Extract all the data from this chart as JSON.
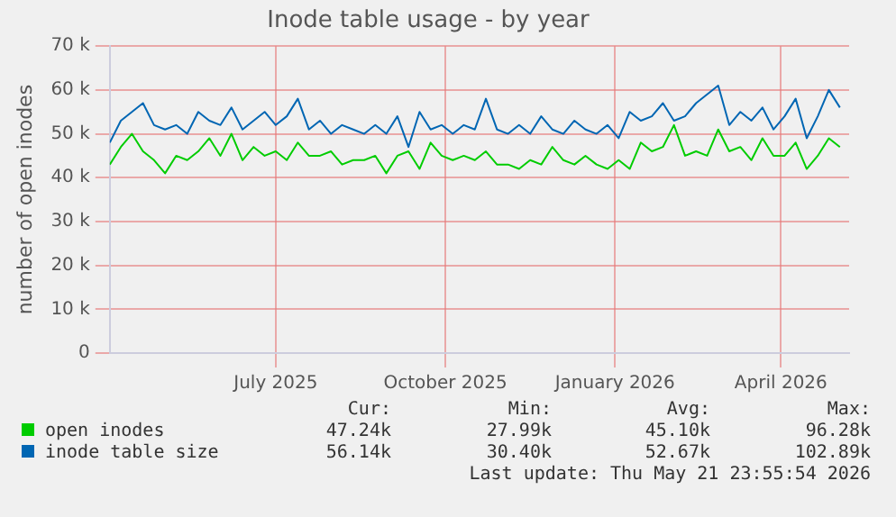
{
  "chart_data": {
    "type": "line",
    "title": "Inode table usage - by year",
    "ylabel": "number of open inodes",
    "x": [
      "2025-04-02",
      "2025-04-08",
      "2025-04-14",
      "2025-04-20",
      "2025-04-26",
      "2025-05-02",
      "2025-05-08",
      "2025-05-14",
      "2025-05-20",
      "2025-05-26",
      "2025-06-01",
      "2025-06-07",
      "2025-06-13",
      "2025-06-19",
      "2025-06-25",
      "2025-07-01",
      "2025-07-07",
      "2025-07-13",
      "2025-07-19",
      "2025-07-25",
      "2025-07-31",
      "2025-08-06",
      "2025-08-12",
      "2025-08-18",
      "2025-08-24",
      "2025-08-30",
      "2025-09-05",
      "2025-09-11",
      "2025-09-17",
      "2025-09-23",
      "2025-09-29",
      "2025-10-05",
      "2025-10-11",
      "2025-10-17",
      "2025-10-23",
      "2025-10-29",
      "2025-11-04",
      "2025-11-10",
      "2025-11-16",
      "2025-11-22",
      "2025-11-28",
      "2025-12-04",
      "2025-12-10",
      "2025-12-16",
      "2025-12-22",
      "2025-12-28",
      "2026-01-03",
      "2026-01-09",
      "2026-01-15",
      "2026-01-21",
      "2026-01-27",
      "2026-02-02",
      "2026-02-08",
      "2026-02-14",
      "2026-02-20",
      "2026-02-26",
      "2026-03-04",
      "2026-03-10",
      "2026-03-16",
      "2026-03-22",
      "2026-03-28",
      "2026-04-03",
      "2026-04-09",
      "2026-04-15",
      "2026-04-21",
      "2026-04-27",
      "2026-05-03"
    ],
    "series": [
      {
        "name": "open inodes",
        "color": "#00cc00",
        "values": [
          43000,
          47000,
          50000,
          46000,
          44000,
          41000,
          45000,
          44000,
          46000,
          49000,
          45000,
          50000,
          44000,
          47000,
          45000,
          46000,
          44000,
          48000,
          45000,
          45000,
          46000,
          43000,
          44000,
          44000,
          45000,
          41000,
          45000,
          46000,
          42000,
          48000,
          45000,
          44000,
          45000,
          44000,
          46000,
          43000,
          43000,
          42000,
          44000,
          43000,
          47000,
          44000,
          43000,
          45000,
          43000,
          42000,
          44000,
          42000,
          48000,
          46000,
          47000,
          52000,
          45000,
          46000,
          45000,
          51000,
          46000,
          47000,
          44000,
          49000,
          45000,
          45000,
          48000,
          42000,
          45000,
          49000,
          47000
        ]
      },
      {
        "name": "inode table size",
        "color": "#0066b3",
        "values": [
          48000,
          53000,
          55000,
          57000,
          52000,
          51000,
          52000,
          50000,
          55000,
          53000,
          52000,
          56000,
          51000,
          53000,
          55000,
          52000,
          54000,
          58000,
          51000,
          53000,
          50000,
          52000,
          51000,
          50000,
          52000,
          50000,
          54000,
          47000,
          55000,
          51000,
          52000,
          50000,
          52000,
          51000,
          58000,
          51000,
          50000,
          52000,
          50000,
          54000,
          51000,
          50000,
          53000,
          51000,
          50000,
          52000,
          49000,
          55000,
          53000,
          54000,
          57000,
          53000,
          54000,
          57000,
          59000,
          61000,
          52000,
          55000,
          53000,
          56000,
          51000,
          54000,
          58000,
          49000,
          54000,
          60000,
          56000
        ]
      }
    ],
    "xlim": [
      "2025-04-02",
      "2026-05-08"
    ],
    "xticks": [
      {
        "value": "2025-07-01",
        "label": "July 2025"
      },
      {
        "value": "2025-10-01",
        "label": "October 2025"
      },
      {
        "value": "2026-01-01",
        "label": "January 2026"
      },
      {
        "value": "2026-04-01",
        "label": "April 2026"
      }
    ],
    "ylim": [
      0,
      70000
    ],
    "yticks": [
      0,
      {
        "value": 10000,
        "label": "10 k"
      },
      {
        "value": 20000,
        "label": "20 k"
      },
      {
        "value": 30000,
        "label": "30 k"
      },
      {
        "value": 40000,
        "label": "40 k"
      },
      {
        "value": 50000,
        "label": "50 k"
      },
      {
        "value": 60000,
        "label": "60 k"
      },
      {
        "value": 70000,
        "label": "70 k"
      }
    ],
    "grid": true,
    "legend": "bottom",
    "marker": "none",
    "line_style": "solid",
    "annotations": [
      "Cur:",
      "Min:",
      "Avg:",
      "Max:",
      "47.24k",
      "27.99k",
      "45.10k",
      "96.28k",
      "56.14k",
      "30.40k",
      "52.67k",
      "102.89k",
      "Last update: Thu May 21 23:55:54 2026"
    ]
  }
}
